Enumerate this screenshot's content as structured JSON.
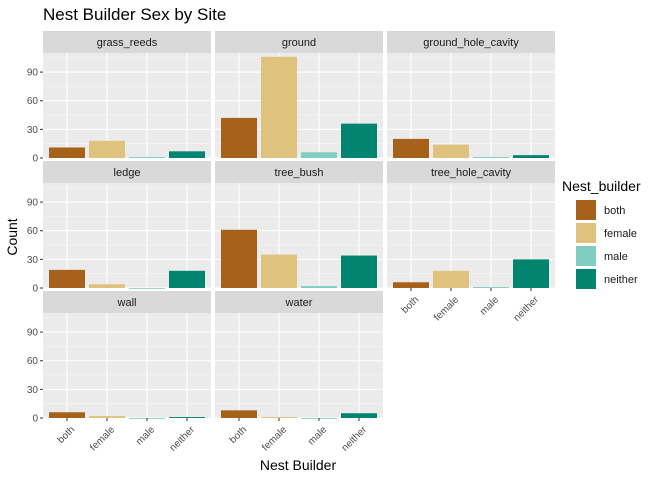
{
  "chart_data": {
    "type": "bar",
    "title": "Nest Builder Sex by Site",
    "xlabel": "Nest Builder",
    "ylabel": "Count",
    "categories": [
      "both",
      "female",
      "male",
      "neither"
    ],
    "y_ticks": [
      "0",
      "30",
      "60",
      "90"
    ],
    "ylim": [
      0,
      110
    ],
    "facet_layout": "3 columns, 3 rows (wrap)",
    "grid": true,
    "legend": {
      "title": "Nest_builder",
      "position": "right",
      "items": [
        {
          "label": "both",
          "color": "#A6611A"
        },
        {
          "label": "female",
          "color": "#DFC27D"
        },
        {
          "label": "male",
          "color": "#80CDC1"
        },
        {
          "label": "neither",
          "color": "#018571"
        }
      ]
    },
    "panels": [
      {
        "name": "grass_reeds",
        "values": [
          11,
          18,
          1,
          7
        ]
      },
      {
        "name": "ground",
        "values": [
          42,
          106,
          6,
          36
        ]
      },
      {
        "name": "ground_hole_cavity",
        "values": [
          20,
          14,
          1,
          3
        ]
      },
      {
        "name": "ledge",
        "values": [
          19,
          4,
          0,
          18
        ]
      },
      {
        "name": "tree_bush",
        "values": [
          61,
          35,
          2,
          34
        ]
      },
      {
        "name": "tree_hole_cavity",
        "values": [
          6,
          18,
          1,
          30
        ]
      },
      {
        "name": "wall",
        "values": [
          6,
          2,
          0,
          1
        ]
      },
      {
        "name": "water",
        "values": [
          8,
          1,
          0,
          5
        ]
      }
    ]
  }
}
